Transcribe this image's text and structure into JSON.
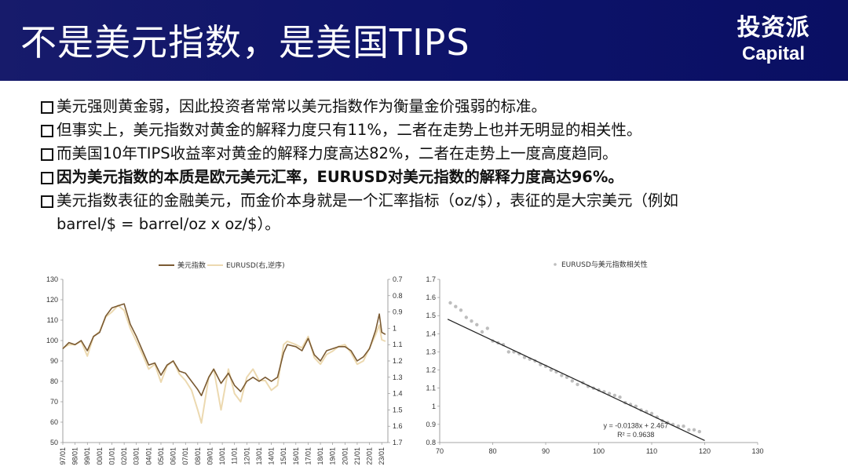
{
  "header": {
    "title": "不是美元指数，是美国TIPS",
    "logo_cn": "投资派",
    "logo_en": "Capital"
  },
  "bullets": [
    {
      "text": "美元强则黄金弱，因此投资者常常以美元指数作为衡量金价强弱的标准。",
      "bold": false
    },
    {
      "text": "但事实上，美元指数对黄金的解释力度只有11%，二者在走势上也并无明显的相关性。",
      "bold": false
    },
    {
      "text": "而美国10年TIPS收益率对黄金的解释力度高达82%，二者在走势上一度高度趋同。",
      "bold": false
    },
    {
      "text": "因为美元指数的本质是欧元美元汇率，EURUSD对美元指数的解释力度高达96%。",
      "bold": true
    },
    {
      "text": "美元指数表征的金融美元，而金价本身就是一个汇率指标（oz/$），表征的是大宗美元（例如barrel/$ = barrel/oz x oz/$）。",
      "bold": false
    }
  ],
  "colors": {
    "header_bg": "#0d136a",
    "usd_index_line": "#7a5a32",
    "eurusd_line": "#ecd9b0",
    "scatter_points": "#bdbdbd",
    "fit_line": "#222222"
  },
  "chart_data": [
    {
      "type": "line",
      "legend": [
        "美元指数",
        "EURUSD(右,逆序)"
      ],
      "legend_position": "top-center",
      "x_ticks": [
        "97/01",
        "98/01",
        "99/01",
        "00/01",
        "01/01",
        "02/01",
        "03/01",
        "04/01",
        "05/01",
        "06/01",
        "07/01",
        "08/01",
        "09/01",
        "10/01",
        "11/01",
        "12/01",
        "13/01",
        "14/01",
        "15/01",
        "16/01",
        "17/01",
        "18/01",
        "19/01",
        "20/01",
        "21/01",
        "22/01",
        "23/01"
      ],
      "ylim_left": [
        50,
        130
      ],
      "y_ticks_left": [
        "130",
        "120",
        "110",
        "100",
        "90",
        "80",
        "70",
        "60",
        "50"
      ],
      "ylim_right_inverted": [
        0.7,
        1.7
      ],
      "y_ticks_right": [
        "0.7",
        "0.8",
        "0.9",
        "1",
        "1.1",
        "1.2",
        "1.3",
        "1.4",
        "1.5",
        "1.6",
        "1.7"
      ],
      "series": [
        {
          "name": "美元指数",
          "axis": "left",
          "x": [
            1997.0,
            1997.5,
            1998.0,
            1998.5,
            1999.0,
            1999.5,
            2000.0,
            2000.5,
            2001.0,
            2001.5,
            2002.0,
            2002.5,
            2003.0,
            2003.5,
            2004.0,
            2004.5,
            2005.0,
            2005.5,
            2006.0,
            2006.5,
            2007.0,
            2007.5,
            2008.0,
            2008.3,
            2008.9,
            2009.3,
            2009.9,
            2010.5,
            2011.0,
            2011.5,
            2012.0,
            2012.5,
            2013.0,
            2013.5,
            2014.0,
            2014.5,
            2015.0,
            2015.3,
            2016.0,
            2016.5,
            2017.0,
            2017.5,
            2018.0,
            2018.5,
            2019.0,
            2019.5,
            2020.0,
            2020.5,
            2021.0,
            2021.5,
            2022.0,
            2022.5,
            2022.8,
            2023.0,
            2023.3
          ],
          "y": [
            96,
            99,
            98,
            100,
            95,
            102,
            104,
            112,
            116,
            117,
            118,
            108,
            102,
            95,
            88,
            89,
            83,
            88,
            90,
            85,
            84,
            80,
            76,
            73,
            82,
            86,
            79,
            84,
            78,
            75,
            80,
            82,
            80,
            82,
            80,
            82,
            94,
            98,
            97,
            95,
            101,
            93,
            90,
            95,
            96,
            97,
            97,
            95,
            90,
            92,
            96,
            105,
            113,
            104,
            103
          ]
        },
        {
          "name": "EURUSD(右,逆序)",
          "axis": "right",
          "x": [
            1997.0,
            1997.5,
            1998.0,
            1998.5,
            1999.0,
            1999.5,
            2000.0,
            2000.5,
            2001.0,
            2001.5,
            2002.0,
            2002.5,
            2003.0,
            2003.5,
            2004.0,
            2004.5,
            2005.0,
            2005.5,
            2006.0,
            2006.5,
            2007.0,
            2007.5,
            2008.0,
            2008.3,
            2008.9,
            2009.3,
            2009.9,
            2010.5,
            2011.0,
            2011.5,
            2012.0,
            2012.5,
            2013.0,
            2013.5,
            2014.0,
            2014.5,
            2015.0,
            2015.3,
            2016.0,
            2016.5,
            2017.0,
            2017.5,
            2018.0,
            2018.5,
            2019.0,
            2019.5,
            2020.0,
            2020.5,
            2021.0,
            2021.5,
            2022.0,
            2022.5,
            2022.8,
            2023.0,
            2023.3
          ],
          "y": [
            1.12,
            1.1,
            1.1,
            1.08,
            1.17,
            1.05,
            1.02,
            0.93,
            0.9,
            0.86,
            0.89,
            1.0,
            1.08,
            1.16,
            1.25,
            1.22,
            1.33,
            1.23,
            1.2,
            1.28,
            1.32,
            1.38,
            1.5,
            1.58,
            1.3,
            1.25,
            1.5,
            1.25,
            1.4,
            1.45,
            1.3,
            1.25,
            1.32,
            1.32,
            1.38,
            1.35,
            1.1,
            1.08,
            1.1,
            1.12,
            1.05,
            1.18,
            1.22,
            1.16,
            1.14,
            1.11,
            1.1,
            1.15,
            1.22,
            1.2,
            1.12,
            1.04,
            0.98,
            1.07,
            1.08
          ]
        }
      ]
    },
    {
      "type": "scatter",
      "legend": [
        "EURUSD与美元指数相关性"
      ],
      "legend_position": "top-center",
      "xlim": [
        70,
        130
      ],
      "x_ticks": [
        "70",
        "80",
        "90",
        "100",
        "110",
        "120",
        "130"
      ],
      "ylim": [
        0.8,
        1.7
      ],
      "y_ticks": [
        "0.8",
        "0.9",
        "1",
        "1.1",
        "1.2",
        "1.3",
        "1.4",
        "1.5",
        "1.6",
        "1.7"
      ],
      "trendline": {
        "slope": -0.0138,
        "intercept": 2.467,
        "x_range": [
          71.5,
          120
        ]
      },
      "equation": "y = -0.0138x + 2.467",
      "r_squared": "R² = 0.9638",
      "points": [
        [
          72,
          1.57
        ],
        [
          73,
          1.55
        ],
        [
          74,
          1.53
        ],
        [
          75,
          1.49
        ],
        [
          76,
          1.47
        ],
        [
          77,
          1.45
        ],
        [
          78,
          1.41
        ],
        [
          79,
          1.43
        ],
        [
          80,
          1.36
        ],
        [
          81,
          1.35
        ],
        [
          82,
          1.34
        ],
        [
          83,
          1.3
        ],
        [
          84,
          1.3
        ],
        [
          85,
          1.29
        ],
        [
          86,
          1.27
        ],
        [
          87,
          1.26
        ],
        [
          88,
          1.25
        ],
        [
          89,
          1.23
        ],
        [
          90,
          1.22
        ],
        [
          91,
          1.2
        ],
        [
          92,
          1.19
        ],
        [
          93,
          1.17
        ],
        [
          94,
          1.16
        ],
        [
          95,
          1.14
        ],
        [
          96,
          1.12
        ],
        [
          97,
          1.13
        ],
        [
          98,
          1.11
        ],
        [
          99,
          1.1
        ],
        [
          100,
          1.09
        ],
        [
          101,
          1.08
        ],
        [
          102,
          1.07
        ],
        [
          103,
          1.06
        ],
        [
          104,
          1.05
        ],
        [
          105,
          1.02
        ],
        [
          106,
          1.01
        ],
        [
          107,
          1.0
        ],
        [
          108,
          0.98
        ],
        [
          109,
          0.97
        ],
        [
          110,
          0.96
        ],
        [
          111,
          0.94
        ],
        [
          112,
          0.92
        ],
        [
          113,
          0.91
        ],
        [
          114,
          0.9
        ],
        [
          115,
          0.89
        ],
        [
          116,
          0.89
        ],
        [
          117,
          0.87
        ],
        [
          118,
          0.87
        ],
        [
          119,
          0.86
        ]
      ]
    }
  ]
}
